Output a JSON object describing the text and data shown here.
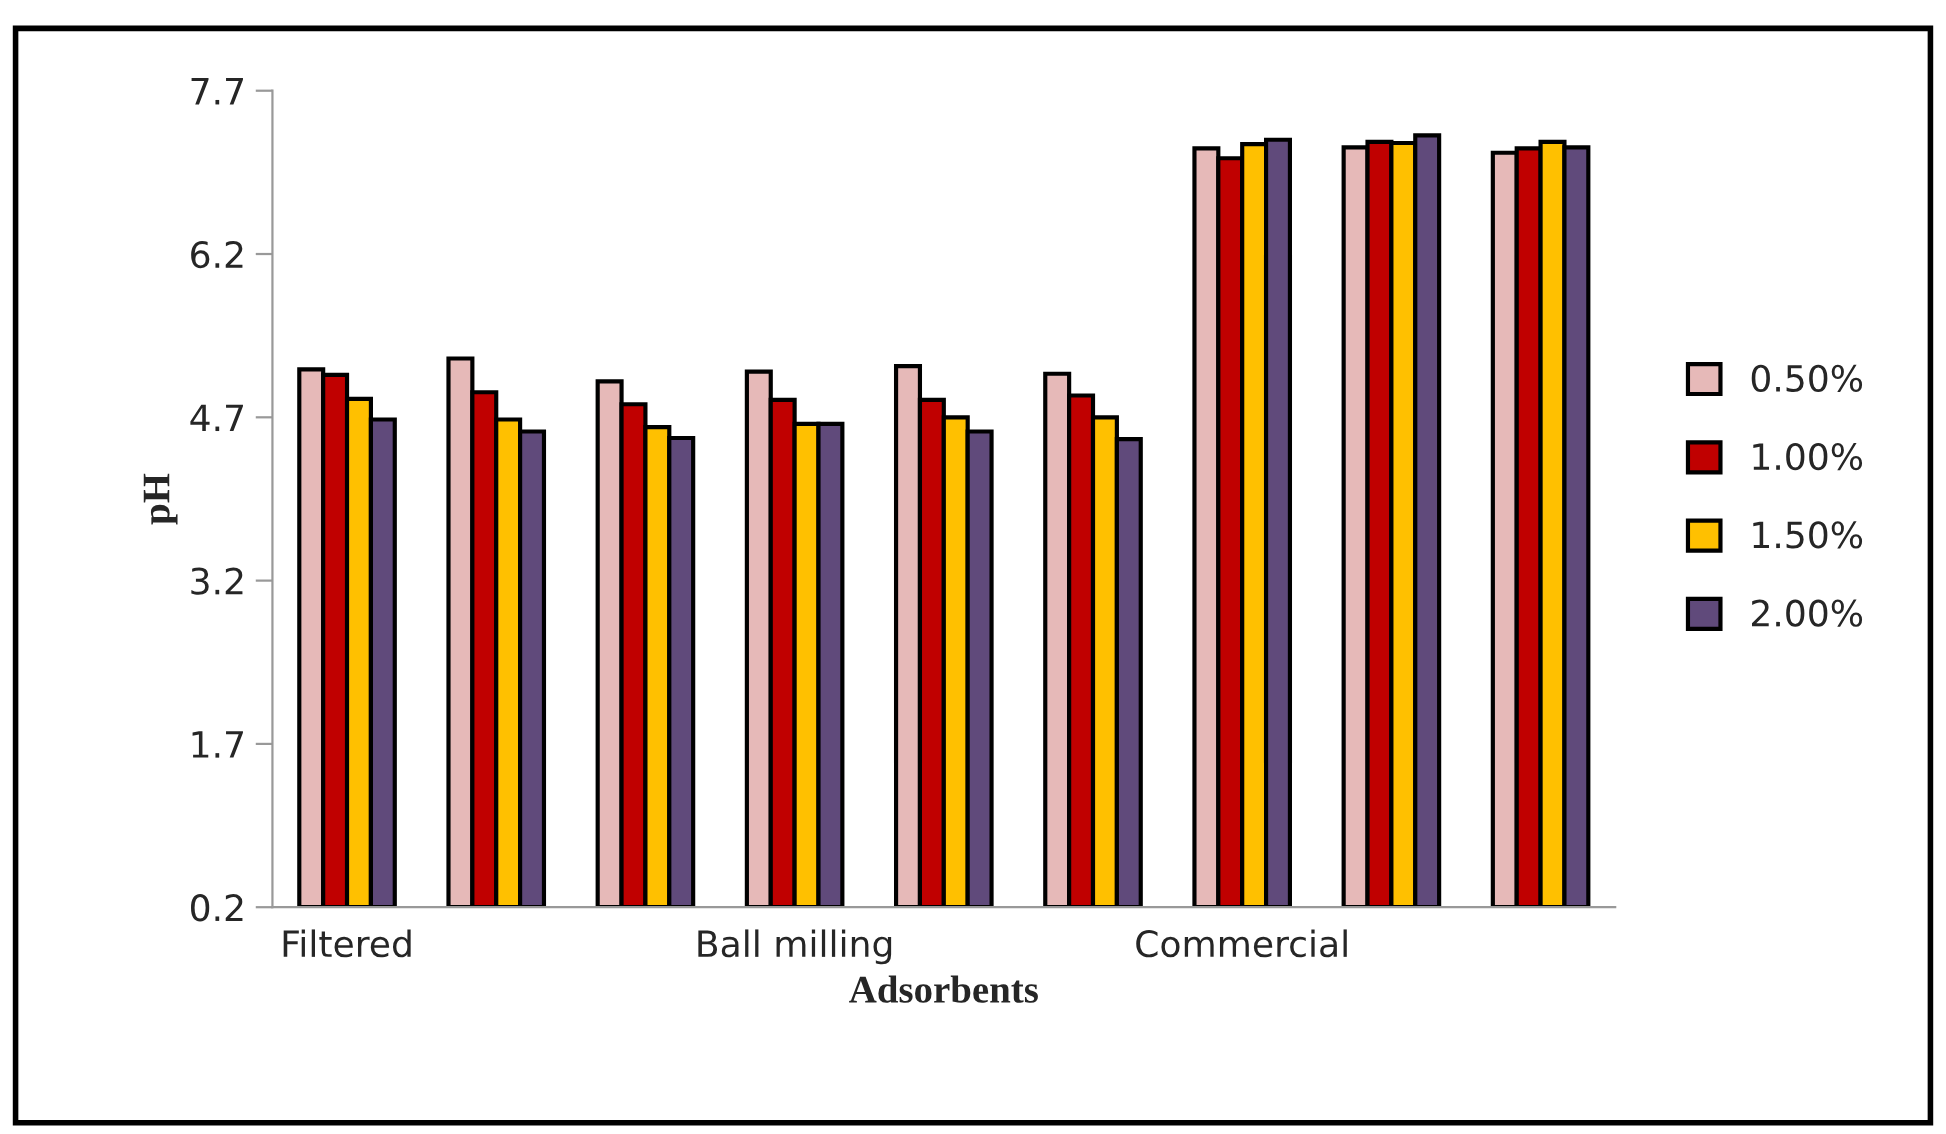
{
  "chart_data": {
    "type": "bar",
    "xlabel": "Adsorbents",
    "ylabel": "pH",
    "categories": [
      "Filtered",
      null,
      null,
      "Ball milling",
      null,
      null,
      "Commercial",
      null,
      null
    ],
    "series": [
      {
        "name": "0.50%",
        "color": "#e6b9b8",
        "values": [
          5.14,
          5.24,
          5.03,
          5.12,
          5.17,
          5.1,
          7.17,
          7.18,
          7.13
        ]
      },
      {
        "name": "1.00%",
        "color": "#c00000",
        "values": [
          5.09,
          4.93,
          4.82,
          4.86,
          4.86,
          4.9,
          7.08,
          7.23,
          7.17
        ]
      },
      {
        "name": "1.50%",
        "color": "#ffc000",
        "values": [
          4.87,
          4.68,
          4.61,
          4.64,
          4.7,
          4.7,
          7.21,
          7.22,
          7.23
        ]
      },
      {
        "name": "2.00%",
        "color": "#604a7b",
        "values": [
          4.68,
          4.57,
          4.51,
          4.64,
          4.57,
          4.5,
          7.25,
          7.29,
          7.18
        ]
      }
    ],
    "ylim": [
      0.2,
      7.7
    ],
    "yticks": [
      0.2,
      1.7,
      3.2,
      4.7,
      6.2,
      7.7
    ],
    "grid": false,
    "legend": "right"
  }
}
